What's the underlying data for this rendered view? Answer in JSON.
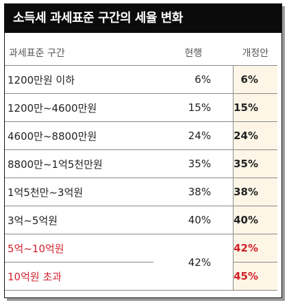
{
  "title": "소득세 과세표준 구간의 세율 변화",
  "chart_data": {
    "type": "table",
    "columns": [
      "과세표준 구간",
      "현행",
      "개정안"
    ],
    "rows": [
      {
        "bracket": "1200만원 이하",
        "current": "6%",
        "revised": "6%",
        "highlight": false
      },
      {
        "bracket": "1200만~4600만원",
        "current": "15%",
        "revised": "15%",
        "highlight": false
      },
      {
        "bracket": "4600만~8800만원",
        "current": "24%",
        "revised": "24%",
        "highlight": false
      },
      {
        "bracket": "8800만~1억5천만원",
        "current": "35%",
        "revised": "35%",
        "highlight": false
      },
      {
        "bracket": "1억5천만~3억원",
        "current": "38%",
        "revised": "38%",
        "highlight": false
      },
      {
        "bracket": "3억~5억원",
        "current": "40%",
        "revised": "40%",
        "highlight": false
      },
      {
        "bracket": "5억~10억원",
        "current": "42%",
        "revised": "42%",
        "highlight": true
      },
      {
        "bracket": "10억원 초과",
        "current": "42%",
        "revised": "45%",
        "highlight": true
      }
    ],
    "merged_current_value": "42%",
    "highlight_color": "#d2202a",
    "revised_column_background": "#fdf6e6"
  }
}
